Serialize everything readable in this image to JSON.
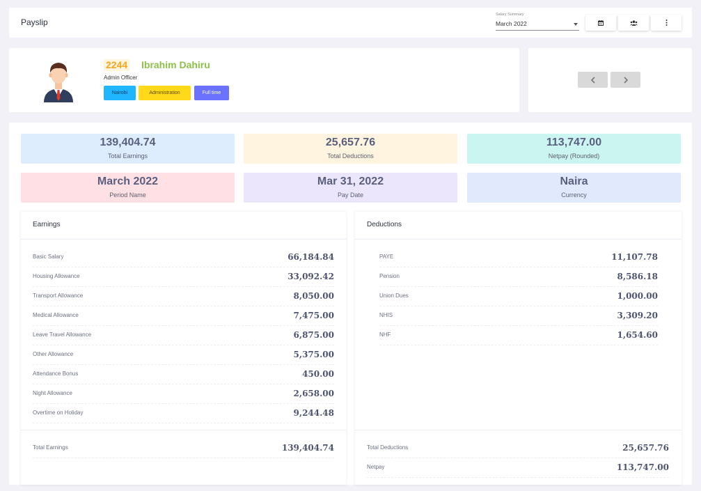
{
  "header": {
    "title": "Payslip",
    "salary_summary_label": "Salary Summary",
    "salary_summary_value": "March 2022",
    "buttons": [
      "calendar-icon",
      "users-icon",
      "more-vertical-icon"
    ]
  },
  "employee": {
    "id": "2244",
    "name": "Ibrahim Dahiru",
    "role": "Admin Officer",
    "tags": {
      "location": "Nairobi",
      "department": "Administration",
      "type": "Full time"
    }
  },
  "nav": {
    "prev_icon": "chevron-left-icon",
    "next_icon": "chevron-right-icon"
  },
  "summary": {
    "total_earnings": {
      "value": "139,404.74",
      "label": "Total Earnings"
    },
    "total_deductions": {
      "value": "25,657.76",
      "label": "Total Deductions"
    },
    "netpay": {
      "value": "113,747.00",
      "label": "Netpay (Rounded)"
    },
    "period": {
      "value": "March 2022",
      "label": "Period Name"
    },
    "pay_date": {
      "value": "Mar 31, 2022",
      "label": "Pay Date"
    },
    "currency": {
      "value": "Naira",
      "label": "Currency"
    }
  },
  "earnings": {
    "title": "Earnings",
    "items": [
      {
        "label": "Basic Salary",
        "value": "66,184.84"
      },
      {
        "label": "Housing Allowance",
        "value": "33,092.42"
      },
      {
        "label": "Transport Allowance",
        "value": "8,050.00"
      },
      {
        "label": "Medical Allowance",
        "value": "7,475.00"
      },
      {
        "label": "Leave Travel Allowance",
        "value": "6,875.00"
      },
      {
        "label": "Other Allowance",
        "value": "5,375.00"
      },
      {
        "label": "Attendance Bonus",
        "value": "450.00"
      },
      {
        "label": "Night Allowance",
        "value": "2,658.00"
      },
      {
        "label": "Overtime on Holiday",
        "value": "9,244.48"
      }
    ],
    "totals": [
      {
        "label": "Total Earnings",
        "value": "139,404.74"
      }
    ]
  },
  "deductions": {
    "title": "Deductions",
    "items": [
      {
        "label": "PAYE",
        "value": "11,107.78"
      },
      {
        "label": "Pension",
        "value": "8,586.18"
      },
      {
        "label": "Union Dues",
        "value": "1,000.00"
      },
      {
        "label": "NHIS",
        "value": "3,309.20"
      },
      {
        "label": "NHF",
        "value": "1,654.60"
      }
    ],
    "totals": [
      {
        "label": "Total Deductions",
        "value": "25,657.76"
      },
      {
        "label": "Netpay",
        "value": "113,747.00"
      }
    ]
  }
}
